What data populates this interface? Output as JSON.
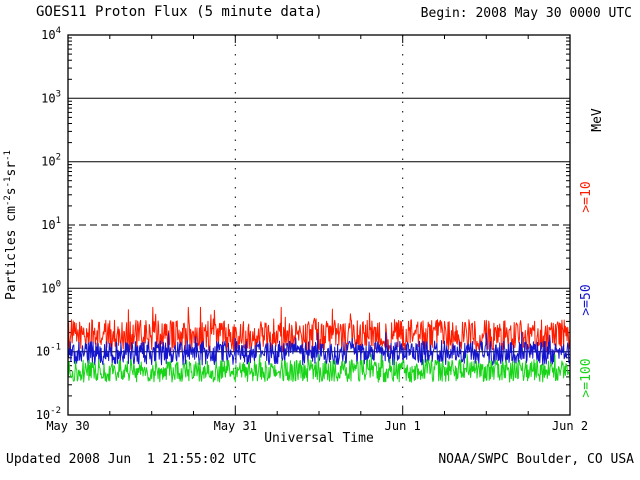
{
  "header": {
    "title": "GOES11 Proton Flux (5 minute data)",
    "begin_label": "Begin: 2008 May 30 0000 UTC"
  },
  "footer": {
    "updated": "Updated 2008 Jun  1 21:55:02 UTC",
    "credit": "NOAA/SWPC Boulder, CO USA"
  },
  "chart_data": {
    "type": "line",
    "title": "GOES11 Proton Flux (5 minute data)",
    "xlabel": "Universal Time",
    "ylabel": "Particles cm-2 s-1 sr-1",
    "ylabel_segments": [
      {
        "t": "Particles cm"
      },
      {
        "s": "-2"
      },
      {
        "t": "s"
      },
      {
        "s": "-1"
      },
      {
        "t": "sr"
      },
      {
        "s": "-1"
      }
    ],
    "y_scale": "log",
    "ylim": [
      0.01,
      10000
    ],
    "y_decades": [
      4,
      3,
      2,
      1,
      0,
      -1,
      -2
    ],
    "dashed_decade": 1,
    "x_ticks": [
      "May 30",
      "May 31",
      "Jun 1",
      "Jun 2"
    ],
    "days": 3,
    "points_per_day": 288,
    "right_axis_unit": "MeV",
    "grid": "horizontal-decades, dotted vertical day boundaries",
    "legend_position": "right-edge-rotated",
    "series": [
      {
        "name": ">=10",
        "color": "#fe1c00",
        "approx_level": 0.18,
        "min": 0.09,
        "max": 0.5,
        "spread_decades": 0.5,
        "spike_prob": 0.05,
        "spike_factor": 1.7,
        "seed": 1234
      },
      {
        "name": ">=50",
        "color": "#1414cc",
        "approx_level": 0.095,
        "min": 0.06,
        "max": 0.2,
        "spread_decades": 0.38,
        "spike_prob": 0.04,
        "spike_factor": 1.45,
        "seed": 5678
      },
      {
        "name": ">=100",
        "color": "#17d417",
        "approx_level": 0.05,
        "min": 0.03,
        "max": 0.09,
        "spread_decades": 0.36,
        "spike_prob": 0.03,
        "spike_factor": 1.3,
        "seed": 9012
      }
    ]
  }
}
